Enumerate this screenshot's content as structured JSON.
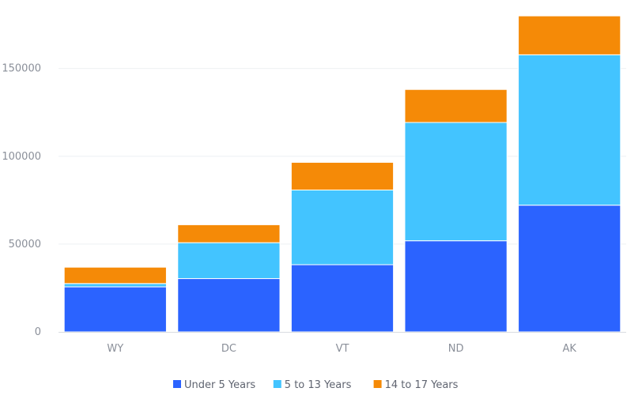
{
  "chart_data": {
    "type": "bar",
    "stacked": true,
    "categories": [
      "WY",
      "DC",
      "VT",
      "ND",
      "AK"
    ],
    "series": [
      {
        "name": "Under 5 Years",
        "values": [
          25635,
          30352,
          38253,
          51896,
          72159
        ],
        "color": "#2b63ff"
      },
      {
        "name": "5 to 13 Years",
        "values": [
          1890,
          20439,
          42538,
          67358,
          85640
        ],
        "color": "#43c4ff"
      },
      {
        "name": "14 to 17 Years",
        "values": [
          9314,
          10225,
          15757,
          18794,
          22153
        ],
        "color": "#f58a07"
      }
    ],
    "ylim": [
      0,
      180000
    ],
    "yticks": [
      0,
      50000,
      100000,
      150000
    ],
    "ytick_labels": [
      "0",
      "50000",
      "100000",
      "150000"
    ],
    "grid": true,
    "legend_position": "bottom"
  }
}
